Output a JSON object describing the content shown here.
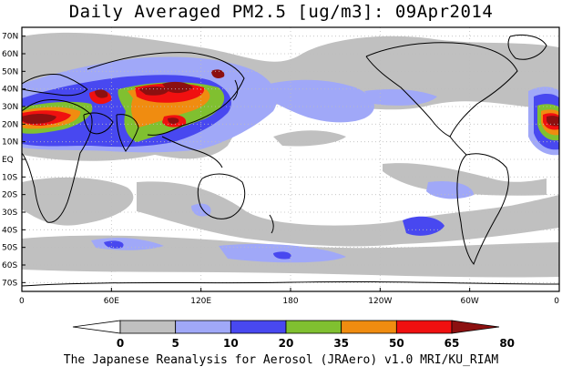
{
  "title": "Daily Averaged PM2.5 [ug/m3]: 09Apr2014",
  "footer": "The Japanese Reanalysis for Aerosol (JRAero) v1.0 MRI/KU_RIAM",
  "lat_labels": [
    "70N",
    "60N",
    "50N",
    "40N",
    "30N",
    "20N",
    "10N",
    "EQ",
    "10S",
    "20S",
    "30S",
    "40S",
    "50S",
    "60S",
    "70S"
  ],
  "lon_labels": [
    "0",
    "60E",
    "120E",
    "180",
    "120W",
    "60W",
    "0"
  ],
  "colorbar": {
    "levels": [
      "0",
      "5",
      "10",
      "20",
      "35",
      "50",
      "65",
      "80"
    ],
    "colors": [
      "#ffffff",
      "#c0c0c0",
      "#a0a8f8",
      "#4848f0",
      "#80c030",
      "#f08c10",
      "#f01010",
      "#8c1010"
    ]
  },
  "colors": {
    "frame": "#000000",
    "grid": "#bdbdbd",
    "land": "#000000"
  }
}
